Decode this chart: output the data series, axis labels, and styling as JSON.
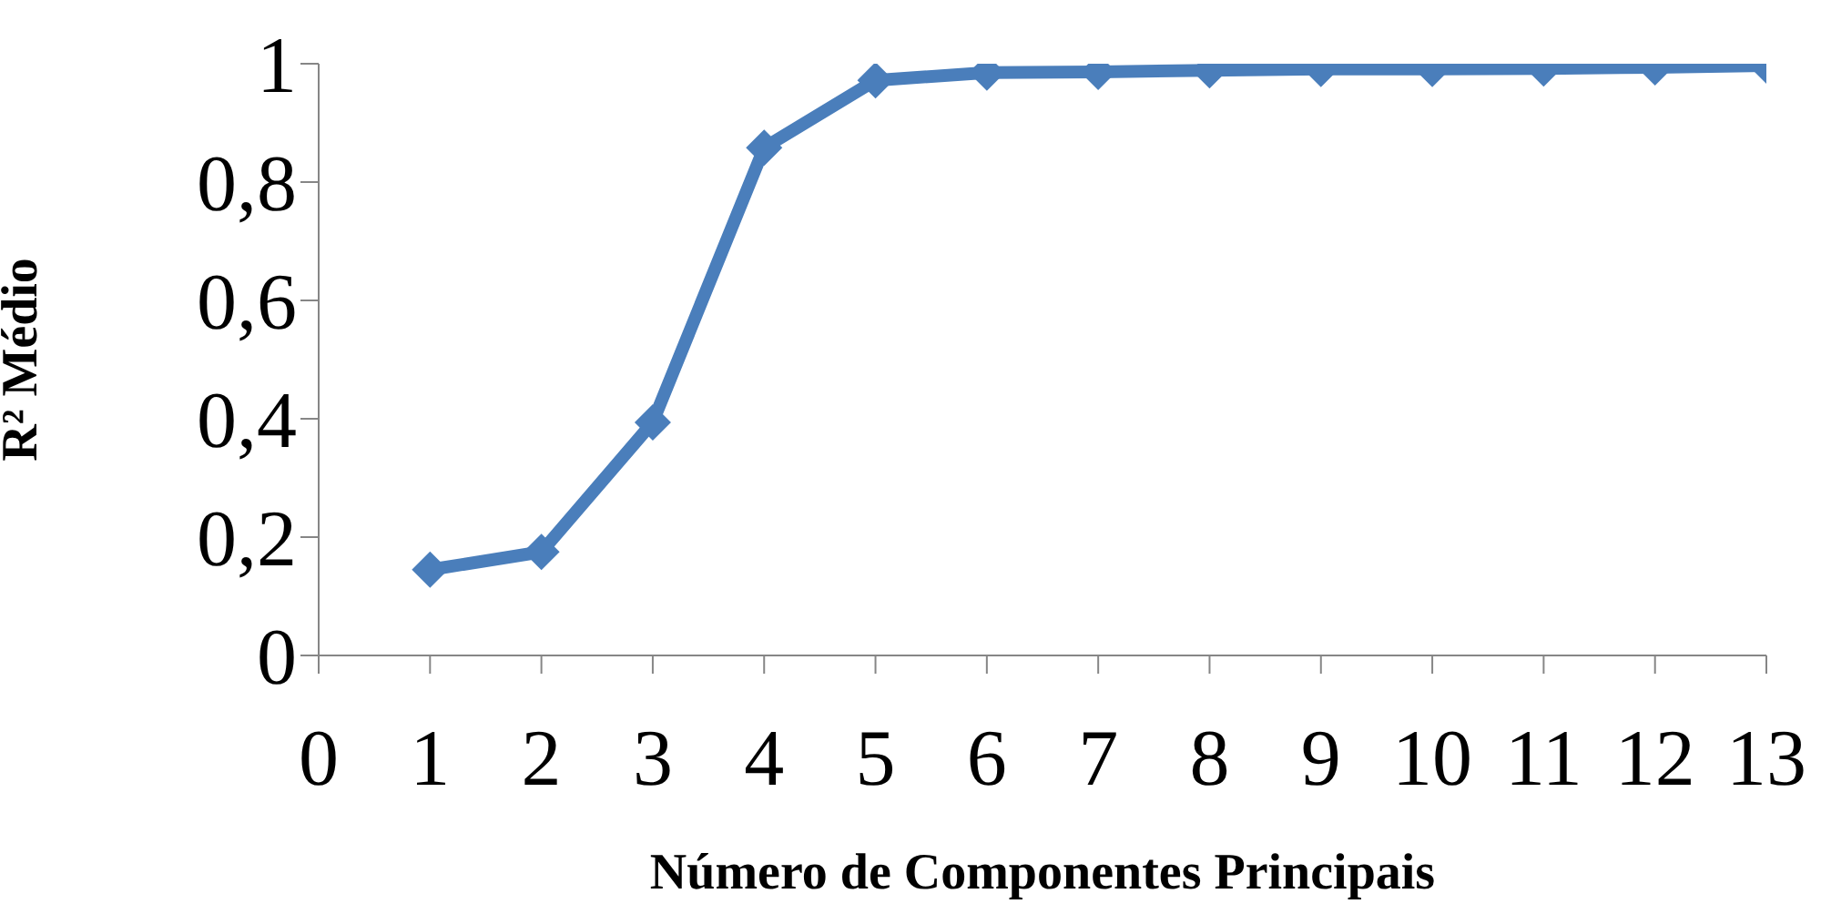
{
  "chart_data": {
    "type": "line",
    "xlabel": "Número de Componentes Principais",
    "ylabel": "R² Médio",
    "x": [
      1,
      2,
      3,
      4,
      5,
      6,
      7,
      8,
      9,
      10,
      11,
      12,
      13
    ],
    "series": [
      {
        "color": "#4a7ebb",
        "values": [
          0.145,
          0.175,
          0.394,
          0.858,
          0.972,
          0.985,
          0.986,
          0.989,
          0.991,
          0.991,
          0.992,
          0.994,
          0.997
        ]
      }
    ],
    "xlim": [
      0,
      13
    ],
    "xticks": [
      0,
      1,
      2,
      3,
      4,
      5,
      6,
      7,
      8,
      9,
      10,
      11,
      12,
      13
    ],
    "ylim": [
      0,
      1
    ],
    "yticks": [
      0,
      {
        "value": 0.2,
        "label": "0,2"
      },
      {
        "value": 0.4,
        "label": "0,4"
      },
      {
        "value": 0.6,
        "label": "0,6"
      },
      {
        "value": 0.8,
        "label": "0,8"
      },
      1
    ],
    "grid": false,
    "legend": false,
    "marker": "diamond",
    "line_style": "solid"
  }
}
